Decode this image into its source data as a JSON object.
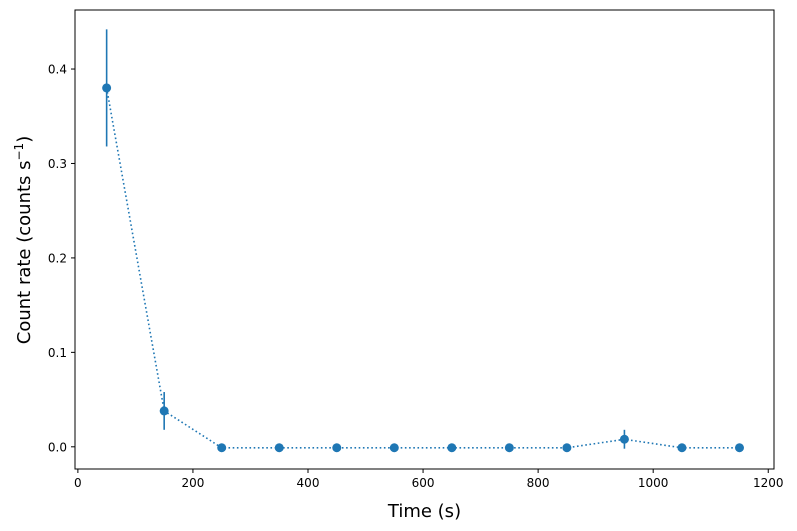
{
  "chart_data": {
    "type": "scatter",
    "title": "",
    "xlabel": "Time (s)",
    "ylabel_main": "Count rate (counts s",
    "ylabel_sup": "−1",
    "ylabel_close": ")",
    "xlim": [
      -5,
      1210
    ],
    "ylim": [
      -0.0235,
      0.4625
    ],
    "xticks": [
      0,
      200,
      400,
      600,
      800,
      1000,
      1200
    ],
    "xtick_labels": [
      "0",
      "200",
      "400",
      "600",
      "800",
      "1000",
      "1200"
    ],
    "yticks": [
      0.0,
      0.1,
      0.2,
      0.3,
      0.4
    ],
    "ytick_labels": [
      "0.0",
      "0.1",
      "0.2",
      "0.3",
      "0.4"
    ],
    "grid": false,
    "legend": "none",
    "line_style": "dotted",
    "color": "#1f77b4",
    "series": [
      {
        "x": [
          50,
          150,
          250,
          350,
          450,
          550,
          650,
          750,
          850,
          950,
          1050,
          1150
        ],
        "y": [
          0.38,
          0.038,
          -0.001,
          -0.001,
          -0.001,
          -0.001,
          -0.001,
          -0.001,
          -0.001,
          0.008,
          -0.001,
          -0.001
        ],
        "yerr": [
          0.062,
          0.02,
          0.0,
          0.0,
          0.0,
          0.0,
          0.0,
          0.0,
          0.0,
          0.01,
          0.0,
          0.0
        ]
      }
    ]
  }
}
